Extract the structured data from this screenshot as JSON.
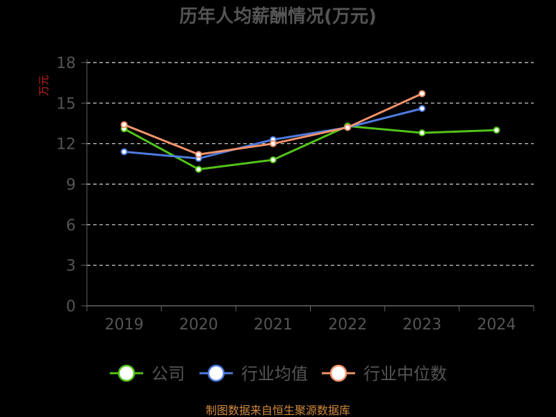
{
  "chart_data": {
    "type": "line",
    "title": "历年人均薪酬情况(万元)",
    "ylabel": "万元",
    "xlabel": "",
    "categories": [
      "2019",
      "2020",
      "2021",
      "2022",
      "2023",
      "2024"
    ],
    "ylim": [
      0,
      18
    ],
    "yticks": [
      0,
      3,
      6,
      9,
      12,
      15,
      18
    ],
    "grid": true,
    "legend_position": "bottom",
    "series": [
      {
        "name": "公司",
        "color": "#52c41a",
        "values": [
          13.1,
          10.1,
          10.8,
          13.3,
          12.8,
          13.0
        ]
      },
      {
        "name": "行业均值",
        "color": "#4e7be0",
        "values": [
          11.4,
          10.9,
          12.3,
          13.2,
          14.6,
          null
        ]
      },
      {
        "name": "行业中位数",
        "color": "#f4936b",
        "values": [
          13.4,
          11.2,
          12.0,
          13.2,
          15.7,
          null
        ]
      }
    ]
  },
  "footer": {
    "source": "制图数据来自恒生聚源数据库"
  },
  "colors": {
    "background": "#000000",
    "title": "#555555",
    "axis": "#666666",
    "tick_label": "#555555",
    "ylabel": "#cc2222",
    "grid": "#dddddd",
    "footer": "#d28a3c"
  }
}
